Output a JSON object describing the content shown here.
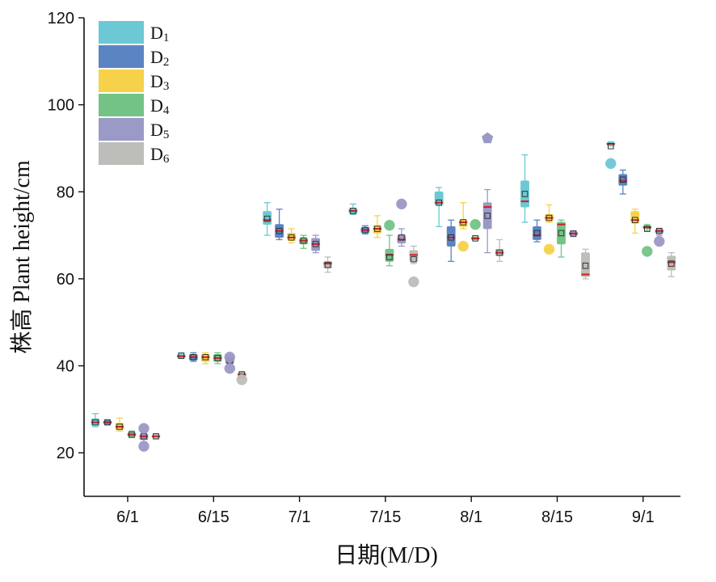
{
  "chart_data": {
    "type": "box",
    "title": "",
    "xlabel": "日期(M/D)",
    "ylabel": "株高 Plant height/cm",
    "ylim": [
      10,
      120
    ],
    "yticks": [
      20,
      40,
      60,
      80,
      100,
      120
    ],
    "categories": [
      "6/1",
      "6/15",
      "7/1",
      "7/15",
      "8/1",
      "8/15",
      "9/1"
    ],
    "grid": false,
    "legend": {
      "placement": "top-left",
      "entries": [
        {
          "name": "D",
          "sub": "1",
          "color": "#6CC8D4"
        },
        {
          "name": "D",
          "sub": "2",
          "color": "#5B84C2"
        },
        {
          "name": "D",
          "sub": "3",
          "color": "#F6D24A"
        },
        {
          "name": "D",
          "sub": "4",
          "color": "#74C386"
        },
        {
          "name": "D",
          "sub": "5",
          "color": "#9B99C6"
        },
        {
          "name": "D",
          "sub": "6",
          "color": "#BDBDBA"
        }
      ]
    },
    "series": [
      {
        "name": "D1",
        "boxes": [
          {
            "min": 26.0,
            "q1": 26.3,
            "median": 27.0,
            "q3": 27.8,
            "max": 29.0,
            "mean": 27.0,
            "outliers": []
          },
          {
            "min": 41.8,
            "q1": 41.9,
            "median": 42.2,
            "q3": 42.6,
            "max": 43.0,
            "mean": 42.3,
            "outliers": []
          },
          {
            "min": 70.0,
            "q1": 72.5,
            "median": 73.5,
            "q3": 75.5,
            "max": 77.5,
            "mean": 73.8,
            "outliers": []
          },
          {
            "min": 74.8,
            "q1": 75.0,
            "median": 75.6,
            "q3": 76.2,
            "max": 77.2,
            "mean": 75.6,
            "outliers": []
          },
          {
            "min": 72.0,
            "q1": 77.0,
            "median": 77.5,
            "q3": 80.0,
            "max": 81.0,
            "mean": 77.5,
            "outliers": []
          },
          {
            "min": 73.0,
            "q1": 76.5,
            "median": 77.8,
            "q3": 82.5,
            "max": 88.5,
            "mean": 79.5,
            "outliers": []
          },
          {
            "min": 90.5,
            "q1": 90.7,
            "median": 91.0,
            "q3": 91.3,
            "max": 91.5,
            "mean": 90.5,
            "outliers": [
              86.5
            ]
          }
        ]
      },
      {
        "name": "D2",
        "boxes": [
          {
            "min": 26.5,
            "q1": 26.7,
            "median": 27.0,
            "q3": 27.3,
            "max": 27.5,
            "mean": 27.0,
            "outliers": []
          },
          {
            "min": 41.0,
            "q1": 41.3,
            "median": 42.0,
            "q3": 42.6,
            "max": 43.0,
            "mean": 42.0,
            "outliers": []
          },
          {
            "min": 69.0,
            "q1": 69.5,
            "median": 71.0,
            "q3": 72.5,
            "max": 76.0,
            "mean": 71.0,
            "outliers": []
          },
          {
            "min": 70.3,
            "q1": 70.6,
            "median": 71.2,
            "q3": 71.8,
            "max": 72.2,
            "mean": 71.2,
            "outliers": []
          },
          {
            "min": 64.0,
            "q1": 67.5,
            "median": 69.5,
            "q3": 72.0,
            "max": 73.5,
            "mean": 69.5,
            "outliers": []
          },
          {
            "min": 68.5,
            "q1": 69.0,
            "median": 70.0,
            "q3": 72.0,
            "max": 73.5,
            "mean": 70.5,
            "outliers": []
          },
          {
            "min": 79.5,
            "q1": 81.5,
            "median": 82.5,
            "q3": 84.0,
            "max": 85.0,
            "mean": 82.8,
            "outliers": []
          }
        ]
      },
      {
        "name": "D3",
        "boxes": [
          {
            "min": 25.0,
            "q1": 25.3,
            "median": 26.0,
            "q3": 26.8,
            "max": 28.0,
            "mean": 26.0,
            "outliers": []
          },
          {
            "min": 40.5,
            "q1": 41.0,
            "median": 42.0,
            "q3": 42.6,
            "max": 43.0,
            "mean": 42.0,
            "outliers": []
          },
          {
            "min": 68.3,
            "q1": 68.8,
            "median": 69.5,
            "q3": 70.5,
            "max": 71.5,
            "mean": 69.5,
            "outliers": []
          },
          {
            "min": 69.5,
            "q1": 70.5,
            "median": 71.5,
            "q3": 72.2,
            "max": 74.5,
            "mean": 71.5,
            "outliers": []
          },
          {
            "min": 71.5,
            "q1": 72.0,
            "median": 73.0,
            "q3": 73.5,
            "max": 77.5,
            "mean": 73.0,
            "outliers": [
              67.5
            ]
          },
          {
            "min": 73.0,
            "q1": 73.3,
            "median": 74.0,
            "q3": 74.8,
            "max": 77.0,
            "mean": 74.0,
            "outliers": [
              66.8
            ]
          },
          {
            "min": 70.5,
            "q1": 72.8,
            "median": 73.5,
            "q3": 75.5,
            "max": 76.0,
            "mean": 73.5,
            "outliers": []
          }
        ]
      },
      {
        "name": "D4",
        "boxes": [
          {
            "min": 23.5,
            "q1": 23.8,
            "median": 24.2,
            "q3": 24.6,
            "max": 25.0,
            "mean": 24.2,
            "outliers": []
          },
          {
            "min": 40.5,
            "q1": 41.0,
            "median": 41.8,
            "q3": 42.6,
            "max": 43.0,
            "mean": 41.8,
            "outliers": []
          },
          {
            "min": 67.0,
            "q1": 68.0,
            "median": 68.8,
            "q3": 69.3,
            "max": 70.0,
            "mean": 68.8,
            "outliers": []
          },
          {
            "min": 63.0,
            "q1": 64.0,
            "median": 65.5,
            "q3": 66.8,
            "max": 70.0,
            "mean": 65.0,
            "outliers": [
              72.3
            ]
          },
          {
            "min": 69.0,
            "q1": 69.1,
            "median": 69.3,
            "q3": 69.5,
            "max": 69.6,
            "mean": 69.3,
            "outliers": [
              72.5
            ]
          },
          {
            "min": 65.0,
            "q1": 68.0,
            "median": 72.5,
            "q3": 73.0,
            "max": 73.5,
            "mean": 70.5,
            "outliers": []
          },
          {
            "min": 71.0,
            "q1": 71.5,
            "median": 71.8,
            "q3": 72.2,
            "max": 72.5,
            "mean": 71.5,
            "outliers": [
              66.3
            ]
          }
        ]
      },
      {
        "name": "D5",
        "boxes": [
          {
            "min": 22.5,
            "q1": 23.0,
            "median": 23.8,
            "q3": 24.3,
            "max": 24.8,
            "mean": 23.8,
            "outliers": [
              25.6,
              21.5
            ]
          },
          {
            "min": 40.0,
            "q1": 40.5,
            "median": 41.2,
            "q3": 41.8,
            "max": 42.3,
            "mean": 41.2,
            "outliers": [
              42.0,
              39.4
            ]
          },
          {
            "min": 66.0,
            "q1": 66.5,
            "median": 68.0,
            "q3": 69.3,
            "max": 70.0,
            "mean": 68.0,
            "outliers": []
          },
          {
            "min": 67.5,
            "q1": 68.2,
            "median": 69.0,
            "q3": 70.0,
            "max": 71.5,
            "mean": 69.5,
            "outliers": [
              77.2
            ]
          },
          {
            "min": 66.0,
            "q1": 71.5,
            "median": 76.5,
            "q3": 77.5,
            "max": 80.5,
            "mean": 74.5,
            "outliers": [
              92.3
            ]
          },
          {
            "min": 69.7,
            "q1": 70.0,
            "median": 70.4,
            "q3": 70.8,
            "max": 71.0,
            "mean": 70.4,
            "outliers": []
          },
          {
            "min": 70.0,
            "q1": 70.5,
            "median": 71.0,
            "q3": 71.3,
            "max": 71.5,
            "mean": 71.0,
            "outliers": [
              68.6
            ]
          }
        ]
      },
      {
        "name": "D6",
        "boxes": [
          {
            "min": 23.3,
            "q1": 23.5,
            "median": 23.8,
            "q3": 24.0,
            "max": 24.2,
            "mean": 23.8,
            "outliers": []
          },
          {
            "min": 37.2,
            "q1": 37.5,
            "median": 38.0,
            "q3": 38.4,
            "max": 38.7,
            "mean": 38.0,
            "outliers": [
              36.8
            ]
          },
          {
            "min": 61.5,
            "q1": 62.5,
            "median": 63.5,
            "q3": 64.0,
            "max": 65.0,
            "mean": 63.2,
            "outliers": []
          },
          {
            "min": 63.5,
            "q1": 64.0,
            "median": 65.5,
            "q3": 66.5,
            "max": 67.5,
            "mean": 64.5,
            "outliers": [
              59.3
            ]
          },
          {
            "min": 64.0,
            "q1": 65.3,
            "median": 66.0,
            "q3": 66.8,
            "max": 69.0,
            "mean": 66.0,
            "outliers": []
          },
          {
            "min": 60.0,
            "q1": 60.5,
            "median": 61.0,
            "q3": 66.0,
            "max": 66.8,
            "mean": 63.0,
            "outliers": []
          },
          {
            "min": 60.5,
            "q1": 62.0,
            "median": 63.8,
            "q3": 65.2,
            "max": 66.0,
            "mean": 63.5,
            "outliers": []
          }
        ]
      }
    ]
  }
}
